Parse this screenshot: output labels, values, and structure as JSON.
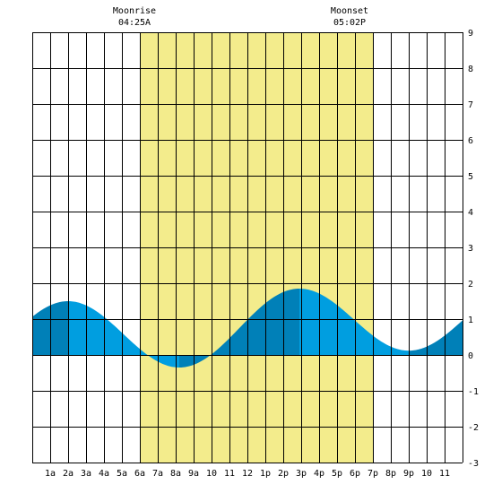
{
  "chart_data": {
    "type": "area",
    "title": "",
    "xlabel": "",
    "ylabel": "",
    "x_tick_labels": [
      "1a",
      "2a",
      "3a",
      "4a",
      "5a",
      "6a",
      "7a",
      "8a",
      "9a",
      "10",
      "11",
      "12",
      "1p",
      "2p",
      "3p",
      "4p",
      "5p",
      "6p",
      "7p",
      "8p",
      "9p",
      "10",
      "11"
    ],
    "xlim": [
      0,
      24
    ],
    "ylim": [
      -3,
      9
    ],
    "y_ticks": [
      -3,
      -2,
      -1,
      0,
      1,
      2,
      3,
      4,
      5,
      6,
      7,
      8,
      9
    ],
    "grid": true,
    "daylight": {
      "start": 6.0,
      "end": 19.0
    },
    "annotations": [
      {
        "label": "Moonrise",
        "time": "04:25A",
        "x": 7.0
      },
      {
        "label": "Moonset",
        "time": "05:02P",
        "x": 19.0
      }
    ],
    "tide_extremes": [
      {
        "type": "high",
        "time": 2.0,
        "height": 1.5
      },
      {
        "type": "low",
        "time": 8.2,
        "height": -0.35
      },
      {
        "type": "high",
        "time": 14.9,
        "height": 1.85
      },
      {
        "type": "low",
        "time": 21.0,
        "height": 0.12
      }
    ],
    "series": [
      {
        "x": [
          0,
          1,
          2,
          3,
          4,
          5,
          6,
          7,
          8,
          9,
          10,
          11,
          12,
          13,
          14,
          15,
          16,
          17,
          18,
          19,
          20,
          21,
          22,
          23,
          24
        ],
        "values": [
          1.2,
          1.42,
          1.5,
          1.42,
          1.15,
          0.72,
          0.25,
          -0.12,
          -0.33,
          -0.25,
          0.02,
          0.42,
          0.9,
          1.35,
          1.72,
          1.85,
          1.72,
          1.38,
          0.92,
          0.55,
          0.25,
          0.12,
          0.2,
          0.42,
          0.75
        ]
      }
    ],
    "colors": {
      "daylight": "#f3ec8c",
      "tide_dark": "#0080b8",
      "tide_light": "#009ee0",
      "grid": "#000000",
      "background": "#ffffff"
    }
  }
}
